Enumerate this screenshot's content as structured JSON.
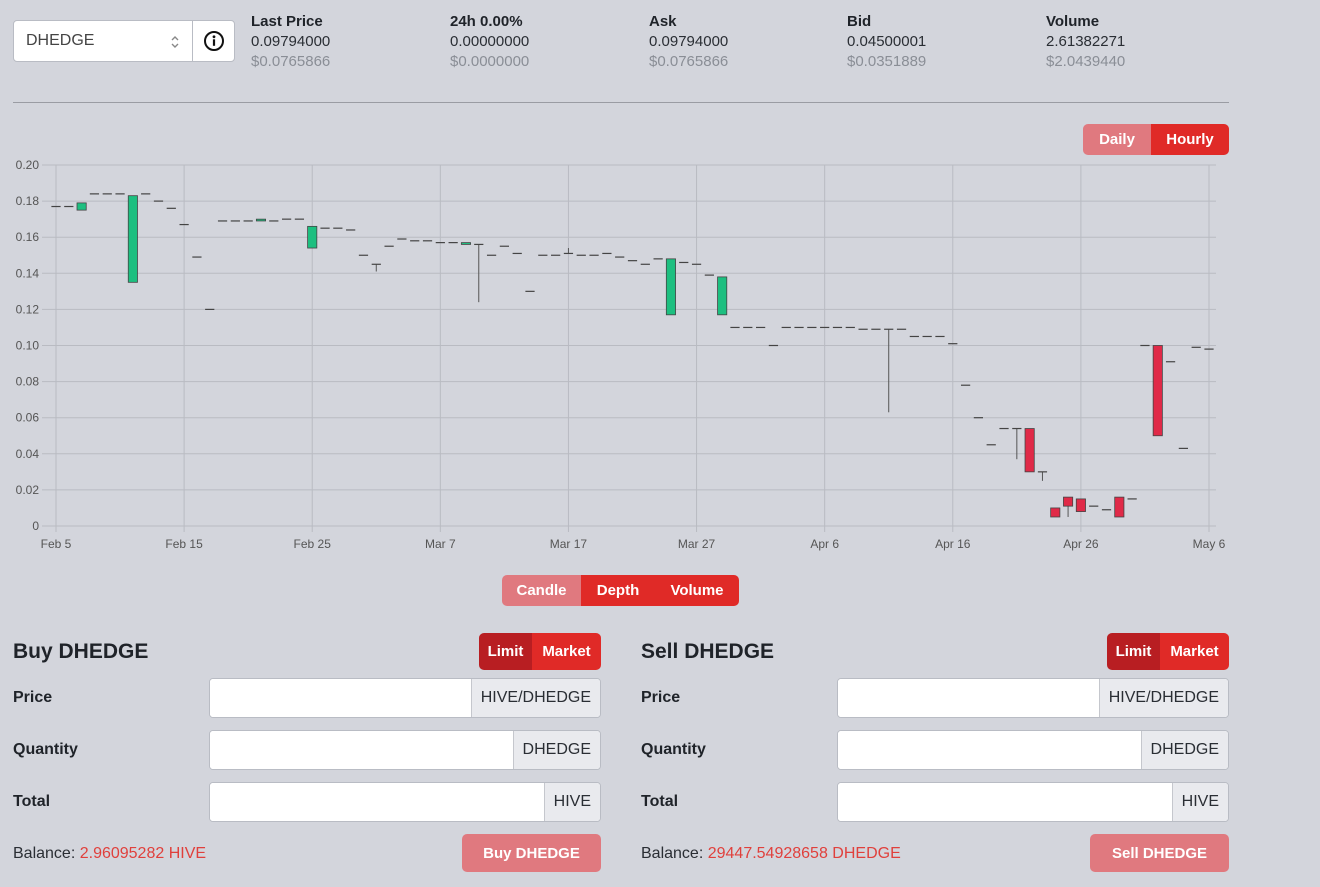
{
  "token_select": {
    "value": "DHEDGE",
    "info_icon": "info-circle-icon"
  },
  "stats": [
    {
      "label": "Last Price",
      "value": "0.09794000",
      "usd": "$0.0765866"
    },
    {
      "label": "24h 0.00%",
      "value": "0.00000000",
      "usd": "$0.0000000"
    },
    {
      "label": "Ask",
      "value": "0.09794000",
      "usd": "$0.0765866"
    },
    {
      "label": "Bid",
      "value": "0.04500001",
      "usd": "$0.0351889"
    },
    {
      "label": "Volume",
      "value": "2.61382271",
      "usd": "$2.0439440"
    }
  ],
  "interval_toggle": {
    "daily": "Daily",
    "hourly": "Hourly",
    "selected": "Hourly"
  },
  "chart_toggle": {
    "candle": "Candle",
    "depth": "Depth",
    "volume": "Volume",
    "selected": "Candle"
  },
  "colors": {
    "up": "#1dbf80",
    "down": "#e02a48",
    "accent": "#e02a27",
    "accent_light": "#e0797f"
  },
  "chart_data": {
    "type": "candlestick",
    "ylim": [
      0,
      0.2
    ],
    "y_ticks": [
      "0",
      "0.02",
      "0.04",
      "0.06",
      "0.08",
      "0.10",
      "0.12",
      "0.14",
      "0.16",
      "0.18",
      "0.20"
    ],
    "x_ticks": [
      {
        "day": 0,
        "label": "Feb 5"
      },
      {
        "day": 10,
        "label": "Feb 15"
      },
      {
        "day": 20,
        "label": "Feb 25"
      },
      {
        "day": 30,
        "label": "Mar 7"
      },
      {
        "day": 40,
        "label": "Mar 17"
      },
      {
        "day": 50,
        "label": "Mar 27"
      },
      {
        "day": 60,
        "label": "Apr 6"
      },
      {
        "day": 70,
        "label": "Apr 16"
      },
      {
        "day": 80,
        "label": "Apr 26"
      },
      {
        "day": 90,
        "label": "May 6"
      }
    ],
    "candles": [
      {
        "d": 0,
        "o": 0.177,
        "h": 0.177,
        "l": 0.177,
        "c": 0.177
      },
      {
        "d": 1,
        "o": 0.177,
        "h": 0.177,
        "l": 0.177,
        "c": 0.177
      },
      {
        "d": 2,
        "o": 0.175,
        "h": 0.179,
        "l": 0.175,
        "c": 0.179
      },
      {
        "d": 3,
        "o": 0.184,
        "h": 0.184,
        "l": 0.184,
        "c": 0.184
      },
      {
        "d": 4,
        "o": 0.184,
        "h": 0.184,
        "l": 0.184,
        "c": 0.184
      },
      {
        "d": 5,
        "o": 0.184,
        "h": 0.184,
        "l": 0.184,
        "c": 0.184
      },
      {
        "d": 6,
        "o": 0.135,
        "h": 0.183,
        "l": 0.135,
        "c": 0.183
      },
      {
        "d": 7,
        "o": 0.184,
        "h": 0.184,
        "l": 0.184,
        "c": 0.184
      },
      {
        "d": 8,
        "o": 0.18,
        "h": 0.18,
        "l": 0.18,
        "c": 0.18
      },
      {
        "d": 9,
        "o": 0.176,
        "h": 0.176,
        "l": 0.176,
        "c": 0.176
      },
      {
        "d": 10,
        "o": 0.167,
        "h": 0.167,
        "l": 0.167,
        "c": 0.167
      },
      {
        "d": 11,
        "o": 0.149,
        "h": 0.149,
        "l": 0.149,
        "c": 0.149
      },
      {
        "d": 12,
        "o": 0.12,
        "h": 0.12,
        "l": 0.12,
        "c": 0.12
      },
      {
        "d": 13,
        "o": 0.169,
        "h": 0.169,
        "l": 0.169,
        "c": 0.169
      },
      {
        "d": 14,
        "o": 0.169,
        "h": 0.169,
        "l": 0.169,
        "c": 0.169
      },
      {
        "d": 15,
        "o": 0.169,
        "h": 0.169,
        "l": 0.169,
        "c": 0.169
      },
      {
        "d": 16,
        "o": 0.169,
        "h": 0.17,
        "l": 0.169,
        "c": 0.17
      },
      {
        "d": 17,
        "o": 0.169,
        "h": 0.169,
        "l": 0.169,
        "c": 0.169
      },
      {
        "d": 18,
        "o": 0.17,
        "h": 0.17,
        "l": 0.17,
        "c": 0.17
      },
      {
        "d": 19,
        "o": 0.17,
        "h": 0.17,
        "l": 0.17,
        "c": 0.17
      },
      {
        "d": 20,
        "o": 0.154,
        "h": 0.166,
        "l": 0.154,
        "c": 0.166
      },
      {
        "d": 21,
        "o": 0.165,
        "h": 0.165,
        "l": 0.165,
        "c": 0.165
      },
      {
        "d": 22,
        "o": 0.165,
        "h": 0.165,
        "l": 0.165,
        "c": 0.165
      },
      {
        "d": 23,
        "o": 0.164,
        "h": 0.164,
        "l": 0.164,
        "c": 0.164
      },
      {
        "d": 24,
        "o": 0.15,
        "h": 0.15,
        "l": 0.15,
        "c": 0.15
      },
      {
        "d": 25,
        "o": 0.145,
        "h": 0.145,
        "l": 0.141,
        "c": 0.145
      },
      {
        "d": 26,
        "o": 0.155,
        "h": 0.155,
        "l": 0.155,
        "c": 0.155
      },
      {
        "d": 27,
        "o": 0.159,
        "h": 0.159,
        "l": 0.159,
        "c": 0.159
      },
      {
        "d": 28,
        "o": 0.158,
        "h": 0.158,
        "l": 0.158,
        "c": 0.158
      },
      {
        "d": 29,
        "o": 0.158,
        "h": 0.158,
        "l": 0.158,
        "c": 0.158
      },
      {
        "d": 30,
        "o": 0.157,
        "h": 0.157,
        "l": 0.157,
        "c": 0.157
      },
      {
        "d": 31,
        "o": 0.157,
        "h": 0.157,
        "l": 0.157,
        "c": 0.157
      },
      {
        "d": 32,
        "o": 0.156,
        "h": 0.157,
        "l": 0.156,
        "c": 0.157
      },
      {
        "d": 33,
        "o": 0.156,
        "h": 0.156,
        "l": 0.124,
        "c": 0.156
      },
      {
        "d": 34,
        "o": 0.15,
        "h": 0.15,
        "l": 0.15,
        "c": 0.15
      },
      {
        "d": 35,
        "o": 0.155,
        "h": 0.155,
        "l": 0.155,
        "c": 0.155
      },
      {
        "d": 36,
        "o": 0.151,
        "h": 0.151,
        "l": 0.151,
        "c": 0.151
      },
      {
        "d": 37,
        "o": 0.13,
        "h": 0.13,
        "l": 0.13,
        "c": 0.13
      },
      {
        "d": 38,
        "o": 0.15,
        "h": 0.15,
        "l": 0.15,
        "c": 0.15
      },
      {
        "d": 39,
        "o": 0.15,
        "h": 0.15,
        "l": 0.15,
        "c": 0.15
      },
      {
        "d": 40,
        "o": 0.151,
        "h": 0.154,
        "l": 0.151,
        "c": 0.151
      },
      {
        "d": 41,
        "o": 0.15,
        "h": 0.15,
        "l": 0.15,
        "c": 0.15
      },
      {
        "d": 42,
        "o": 0.15,
        "h": 0.15,
        "l": 0.15,
        "c": 0.15
      },
      {
        "d": 43,
        "o": 0.151,
        "h": 0.151,
        "l": 0.151,
        "c": 0.151
      },
      {
        "d": 44,
        "o": 0.149,
        "h": 0.149,
        "l": 0.149,
        "c": 0.149
      },
      {
        "d": 45,
        "o": 0.147,
        "h": 0.147,
        "l": 0.147,
        "c": 0.147
      },
      {
        "d": 46,
        "o": 0.145,
        "h": 0.145,
        "l": 0.145,
        "c": 0.145
      },
      {
        "d": 47,
        "o": 0.148,
        "h": 0.148,
        "l": 0.148,
        "c": 0.148
      },
      {
        "d": 48,
        "o": 0.117,
        "h": 0.148,
        "l": 0.117,
        "c": 0.148
      },
      {
        "d": 49,
        "o": 0.146,
        "h": 0.146,
        "l": 0.146,
        "c": 0.146
      },
      {
        "d": 50,
        "o": 0.145,
        "h": 0.145,
        "l": 0.145,
        "c": 0.145
      },
      {
        "d": 51,
        "o": 0.139,
        "h": 0.139,
        "l": 0.139,
        "c": 0.139
      },
      {
        "d": 52,
        "o": 0.117,
        "h": 0.138,
        "l": 0.117,
        "c": 0.138
      },
      {
        "d": 53,
        "o": 0.11,
        "h": 0.11,
        "l": 0.11,
        "c": 0.11
      },
      {
        "d": 54,
        "o": 0.11,
        "h": 0.11,
        "l": 0.11,
        "c": 0.11
      },
      {
        "d": 55,
        "o": 0.11,
        "h": 0.11,
        "l": 0.11,
        "c": 0.11
      },
      {
        "d": 56,
        "o": 0.1,
        "h": 0.1,
        "l": 0.1,
        "c": 0.1
      },
      {
        "d": 57,
        "o": 0.11,
        "h": 0.11,
        "l": 0.11,
        "c": 0.11
      },
      {
        "d": 58,
        "o": 0.11,
        "h": 0.11,
        "l": 0.11,
        "c": 0.11
      },
      {
        "d": 59,
        "o": 0.11,
        "h": 0.11,
        "l": 0.11,
        "c": 0.11
      },
      {
        "d": 60,
        "o": 0.11,
        "h": 0.11,
        "l": 0.11,
        "c": 0.11
      },
      {
        "d": 61,
        "o": 0.11,
        "h": 0.11,
        "l": 0.11,
        "c": 0.11
      },
      {
        "d": 62,
        "o": 0.11,
        "h": 0.11,
        "l": 0.11,
        "c": 0.11
      },
      {
        "d": 63,
        "o": 0.109,
        "h": 0.109,
        "l": 0.109,
        "c": 0.109
      },
      {
        "d": 64,
        "o": 0.109,
        "h": 0.109,
        "l": 0.109,
        "c": 0.109
      },
      {
        "d": 65,
        "o": 0.109,
        "h": 0.109,
        "l": 0.063,
        "c": 0.109
      },
      {
        "d": 66,
        "o": 0.109,
        "h": 0.109,
        "l": 0.109,
        "c": 0.109
      },
      {
        "d": 67,
        "o": 0.105,
        "h": 0.105,
        "l": 0.105,
        "c": 0.105
      },
      {
        "d": 68,
        "o": 0.105,
        "h": 0.105,
        "l": 0.105,
        "c": 0.105
      },
      {
        "d": 69,
        "o": 0.105,
        "h": 0.105,
        "l": 0.105,
        "c": 0.105
      },
      {
        "d": 70,
        "o": 0.101,
        "h": 0.101,
        "l": 0.101,
        "c": 0.101
      },
      {
        "d": 71,
        "o": 0.078,
        "h": 0.078,
        "l": 0.078,
        "c": 0.078
      },
      {
        "d": 72,
        "o": 0.06,
        "h": 0.06,
        "l": 0.06,
        "c": 0.06
      },
      {
        "d": 73,
        "o": 0.045,
        "h": 0.045,
        "l": 0.045,
        "c": 0.045
      },
      {
        "d": 74,
        "o": 0.054,
        "h": 0.054,
        "l": 0.054,
        "c": 0.054
      },
      {
        "d": 75,
        "o": 0.054,
        "h": 0.054,
        "l": 0.037,
        "c": 0.054
      },
      {
        "d": 76,
        "o": 0.054,
        "h": 0.054,
        "l": 0.03,
        "c": 0.03
      },
      {
        "d": 77,
        "o": 0.03,
        "h": 0.03,
        "l": 0.025,
        "c": 0.03
      },
      {
        "d": 78,
        "o": 0.01,
        "h": 0.01,
        "l": 0.005,
        "c": 0.005
      },
      {
        "d": 79,
        "o": 0.016,
        "h": 0.016,
        "l": 0.005,
        "c": 0.011
      },
      {
        "d": 80,
        "o": 0.015,
        "h": 0.015,
        "l": 0.008,
        "c": 0.008
      },
      {
        "d": 81,
        "o": 0.011,
        "h": 0.011,
        "l": 0.011,
        "c": 0.011
      },
      {
        "d": 82,
        "o": 0.009,
        "h": 0.009,
        "l": 0.009,
        "c": 0.009
      },
      {
        "d": 83,
        "o": 0.016,
        "h": 0.016,
        "l": 0.005,
        "c": 0.005
      },
      {
        "d": 84,
        "o": 0.015,
        "h": 0.015,
        "l": 0.015,
        "c": 0.015
      },
      {
        "d": 85,
        "o": 0.1,
        "h": 0.1,
        "l": 0.1,
        "c": 0.1
      },
      {
        "d": 86,
        "o": 0.1,
        "h": 0.1,
        "l": 0.05,
        "c": 0.05
      },
      {
        "d": 87,
        "o": 0.091,
        "h": 0.091,
        "l": 0.091,
        "c": 0.091
      },
      {
        "d": 88,
        "o": 0.043,
        "h": 0.043,
        "l": 0.043,
        "c": 0.043
      },
      {
        "d": 89,
        "o": 0.099,
        "h": 0.099,
        "l": 0.099,
        "c": 0.099
      },
      {
        "d": 90,
        "o": 0.098,
        "h": 0.098,
        "l": 0.098,
        "c": 0.098
      }
    ]
  },
  "buy": {
    "title": "Buy DHEDGE",
    "limit": "Limit",
    "market": "Market",
    "price_label": "Price",
    "price_unit": "HIVE/DHEDGE",
    "quantity_label": "Quantity",
    "quantity_unit": "DHEDGE",
    "total_label": "Total",
    "total_unit": "HIVE",
    "balance_label": "Balance:",
    "balance_value": "2.96095282 HIVE",
    "button": "Buy DHEDGE"
  },
  "sell": {
    "title": "Sell DHEDGE",
    "limit": "Limit",
    "market": "Market",
    "price_label": "Price",
    "price_unit": "HIVE/DHEDGE",
    "quantity_label": "Quantity",
    "quantity_unit": "DHEDGE",
    "total_label": "Total",
    "total_unit": "HIVE",
    "balance_label": "Balance:",
    "balance_value": "29447.54928658 DHEDGE",
    "button": "Sell DHEDGE"
  }
}
